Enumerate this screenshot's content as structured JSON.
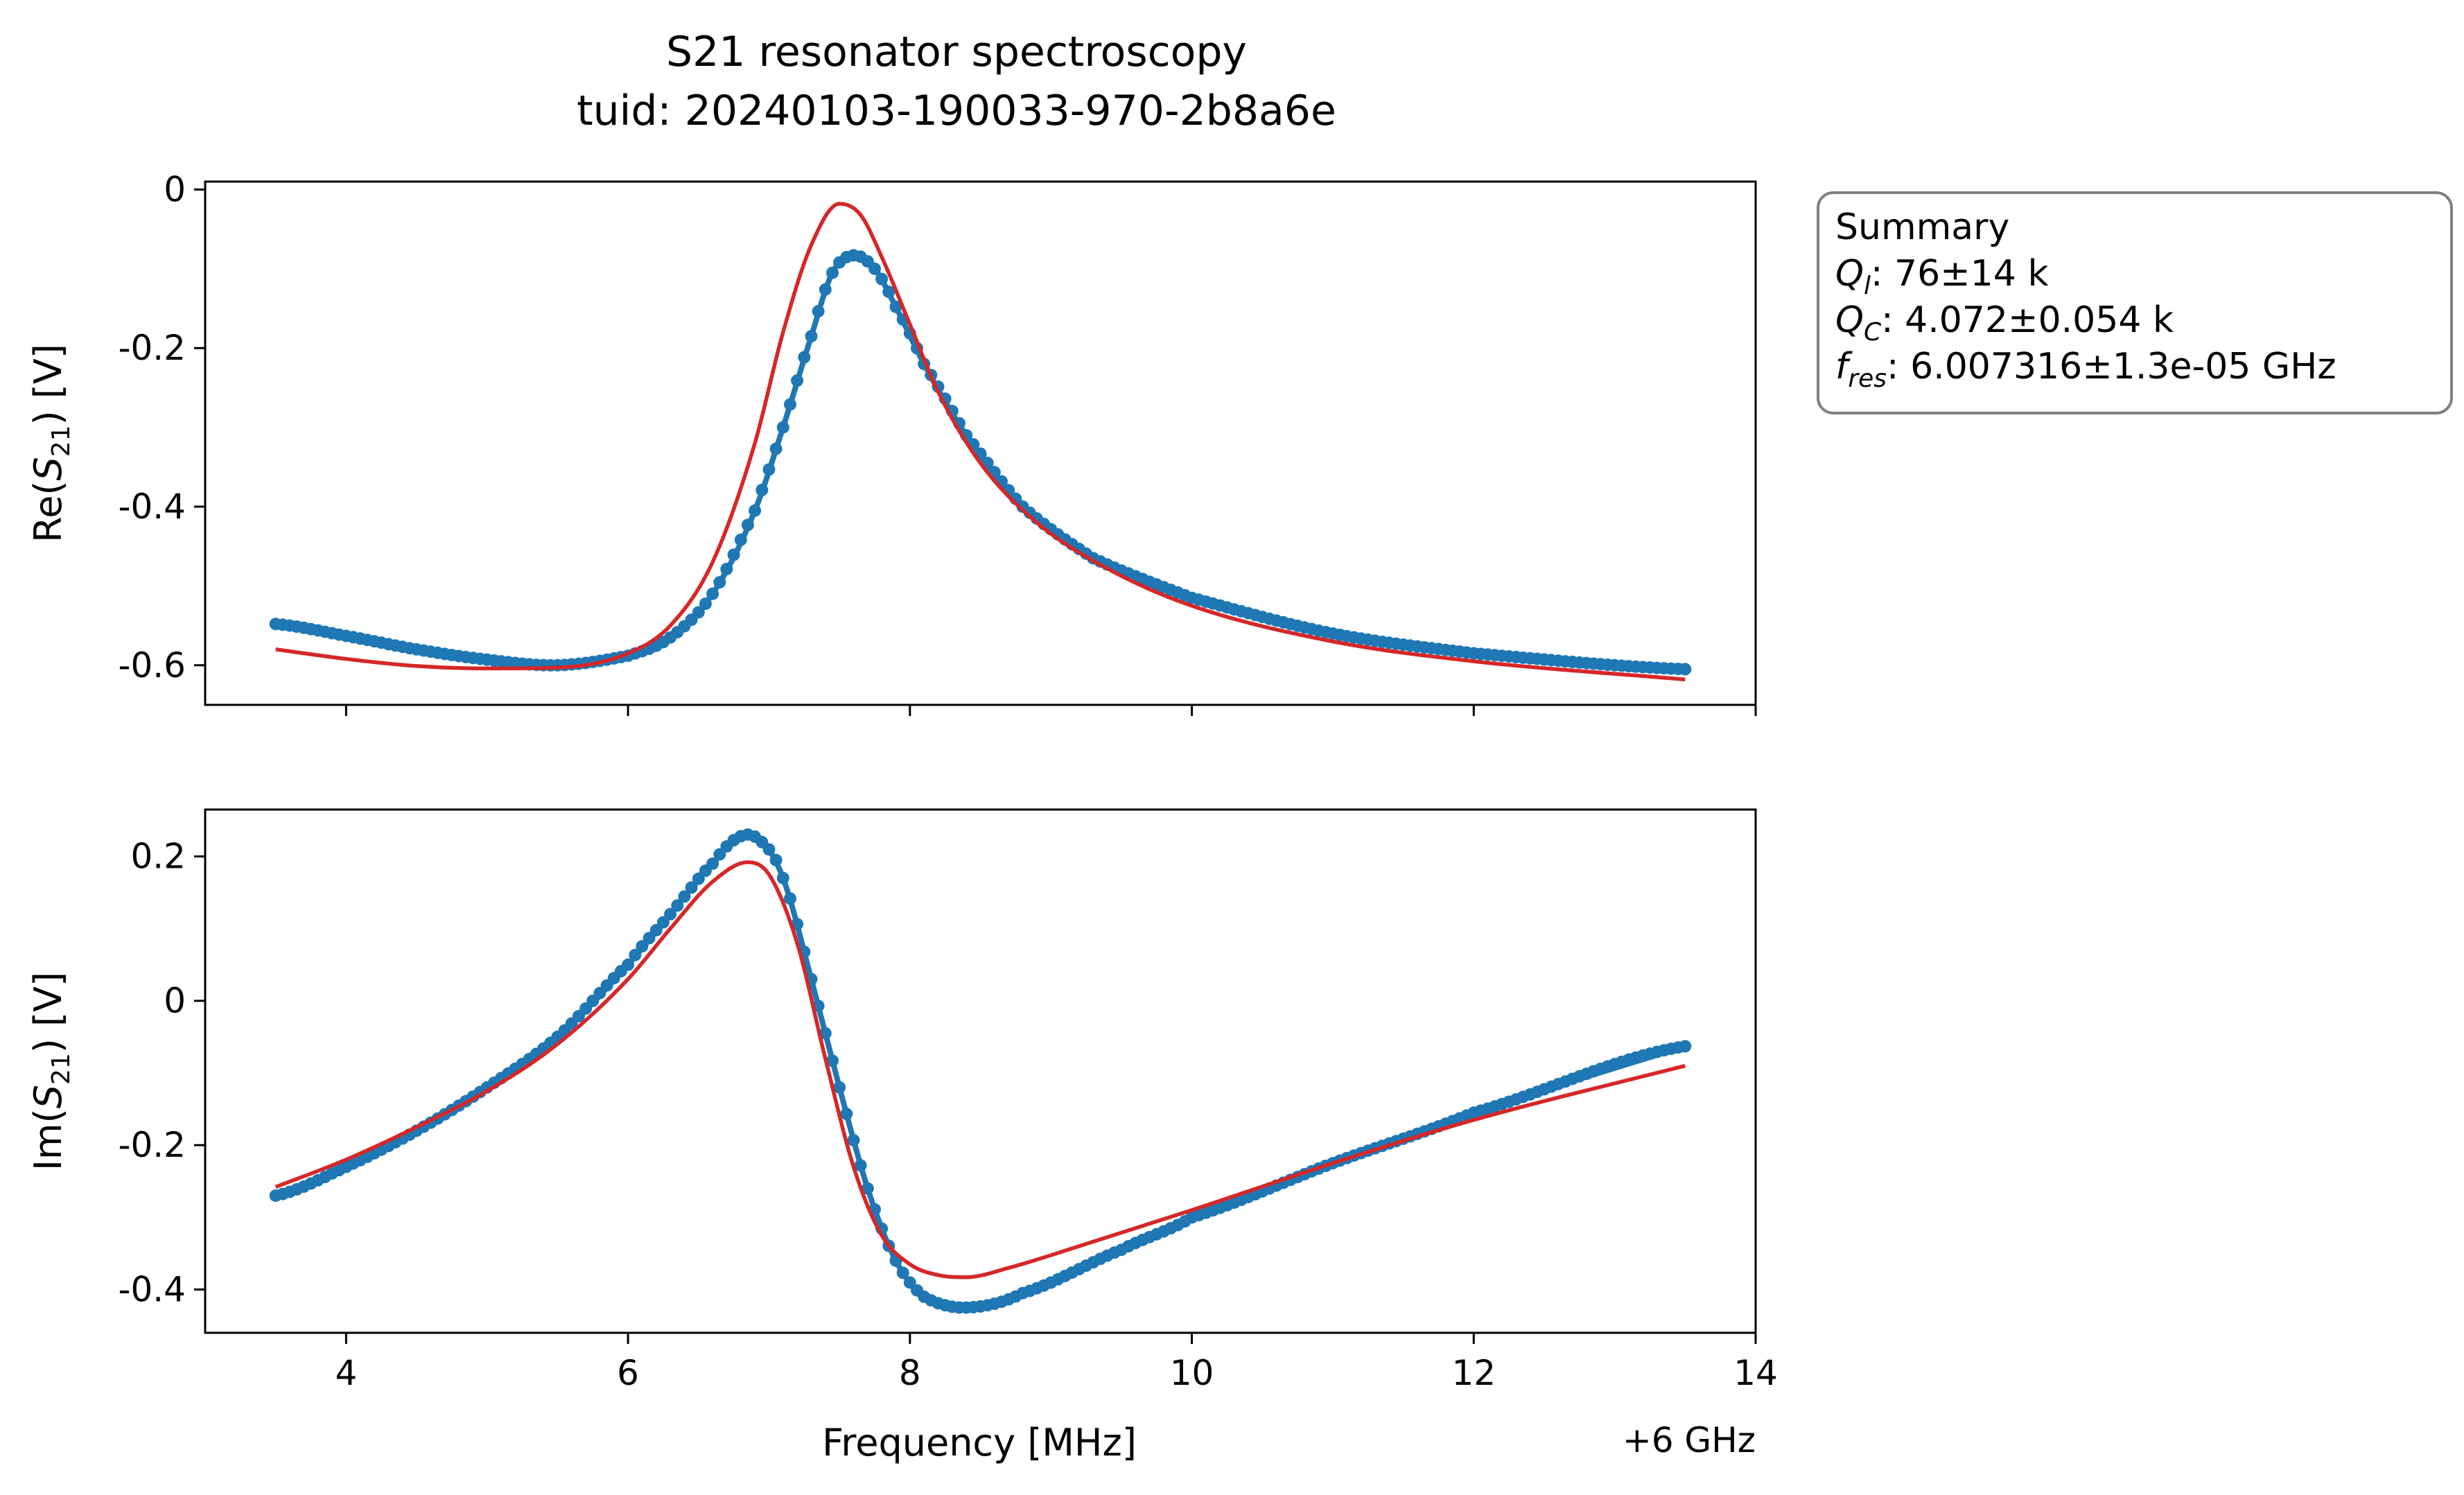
{
  "chart_data": {
    "title": "S21 resonator spectroscopy",
    "subtitle": "tuid: 20240103-190033-970-2b8a6e",
    "xlabel": "Frequency [MHz]",
    "x_offset_label": "+6 GHz",
    "xlim": [
      3,
      14
    ],
    "x_ticks": [
      4,
      6,
      8,
      10,
      12,
      14
    ],
    "x_tick_labels": [
      "4",
      "6",
      "8",
      "10",
      "12",
      "14"
    ],
    "summary": {
      "heading": "Summary",
      "lines": [
        {
          "sym": "Q",
          "sub": "l",
          "text": ": 76±14 k"
        },
        {
          "sym": "Q",
          "sub": "C",
          "text": ": 4.072±0.054 k"
        },
        {
          "sym": "f",
          "sub": "res",
          "text": ": 6.007316±1.3e-05 GHz"
        }
      ]
    },
    "panels": [
      {
        "type": "line",
        "ylabel_main": "Re(",
        "ylabel_sym": "S",
        "ylabel_sub": "21",
        "ylabel_end": ") [V]",
        "ylim": [
          -0.65,
          0.01
        ],
        "y_ticks": [
          0,
          -0.2,
          -0.4,
          -0.6
        ],
        "y_tick_labels": [
          "0",
          "-0.2",
          "-0.4",
          "-0.6"
        ],
        "series": [
          {
            "kind": "data",
            "color": "#1f77b4",
            "x": [
              3.5,
              4.0,
              4.5,
              5.0,
              5.5,
              6.0,
              6.3,
              6.6,
              6.9,
              7.1,
              7.3,
              7.45,
              7.6,
              7.75,
              7.9,
              8.1,
              8.4,
              8.8,
              9.3,
              10.0,
              11.0,
              12.0,
              13.5
            ],
            "y": [
              -0.548,
              -0.563,
              -0.58,
              -0.593,
              -0.6,
              -0.588,
              -0.565,
              -0.51,
              -0.405,
              -0.3,
              -0.185,
              -0.105,
              -0.083,
              -0.1,
              -0.148,
              -0.22,
              -0.31,
              -0.4,
              -0.465,
              -0.515,
              -0.56,
              -0.585,
              -0.605
            ]
          },
          {
            "kind": "fit",
            "color": "#d62728",
            "x": [
              3.5,
              4.0,
              4.5,
              5.0,
              5.5,
              6.0,
              6.3,
              6.6,
              6.9,
              7.1,
              7.3,
              7.5,
              7.65,
              7.8,
              8.0,
              8.2,
              8.5,
              8.9,
              9.4,
              10.0,
              11.0,
              12.0,
              13.5
            ],
            "y": [
              -0.58,
              -0.592,
              -0.601,
              -0.604,
              -0.603,
              -0.585,
              -0.55,
              -0.47,
              -0.32,
              -0.18,
              -0.07,
              -0.018,
              -0.032,
              -0.085,
              -0.17,
              -0.255,
              -0.345,
              -0.42,
              -0.478,
              -0.525,
              -0.57,
              -0.595,
              -0.618
            ]
          }
        ]
      },
      {
        "type": "line",
        "ylabel_main": "Im(",
        "ylabel_sym": "S",
        "ylabel_sub": "21",
        "ylabel_end": ") [V]",
        "ylim": [
          -0.46,
          0.265
        ],
        "y_ticks": [
          0.2,
          0,
          -0.2,
          -0.4
        ],
        "y_tick_labels": [
          "0.2",
          "0",
          "-0.2",
          "-0.4"
        ],
        "series": [
          {
            "kind": "data",
            "color": "#1f77b4",
            "x": [
              3.5,
              4.0,
              4.5,
              5.0,
              5.5,
              6.0,
              6.3,
              6.6,
              6.8,
              6.95,
              7.1,
              7.3,
              7.5,
              7.7,
              7.9,
              8.1,
              8.4,
              8.8,
              9.5,
              10.0,
              11.0,
              12.0,
              13.5
            ],
            "y": [
              -0.27,
              -0.23,
              -0.18,
              -0.12,
              -0.05,
              0.05,
              0.12,
              0.19,
              0.228,
              0.22,
              0.17,
              0.03,
              -0.12,
              -0.26,
              -0.36,
              -0.41,
              -0.425,
              -0.405,
              -0.345,
              -0.3,
              -0.225,
              -0.155,
              -0.063
            ]
          },
          {
            "kind": "fit",
            "color": "#d62728",
            "x": [
              3.5,
              4.0,
              4.5,
              5.0,
              5.5,
              6.0,
              6.3,
              6.6,
              6.85,
              7.0,
              7.2,
              7.4,
              7.6,
              7.8,
              8.0,
              8.2,
              8.4,
              8.7,
              9.2,
              10.0,
              11.0,
              12.0,
              13.5
            ],
            "y": [
              -0.258,
              -0.22,
              -0.175,
              -0.125,
              -0.06,
              0.03,
              0.1,
              0.165,
              0.192,
              0.175,
              0.08,
              -0.08,
              -0.23,
              -0.325,
              -0.365,
              -0.38,
              -0.383,
              -0.37,
              -0.34,
              -0.29,
              -0.225,
              -0.165,
              -0.09
            ]
          }
        ]
      }
    ]
  }
}
